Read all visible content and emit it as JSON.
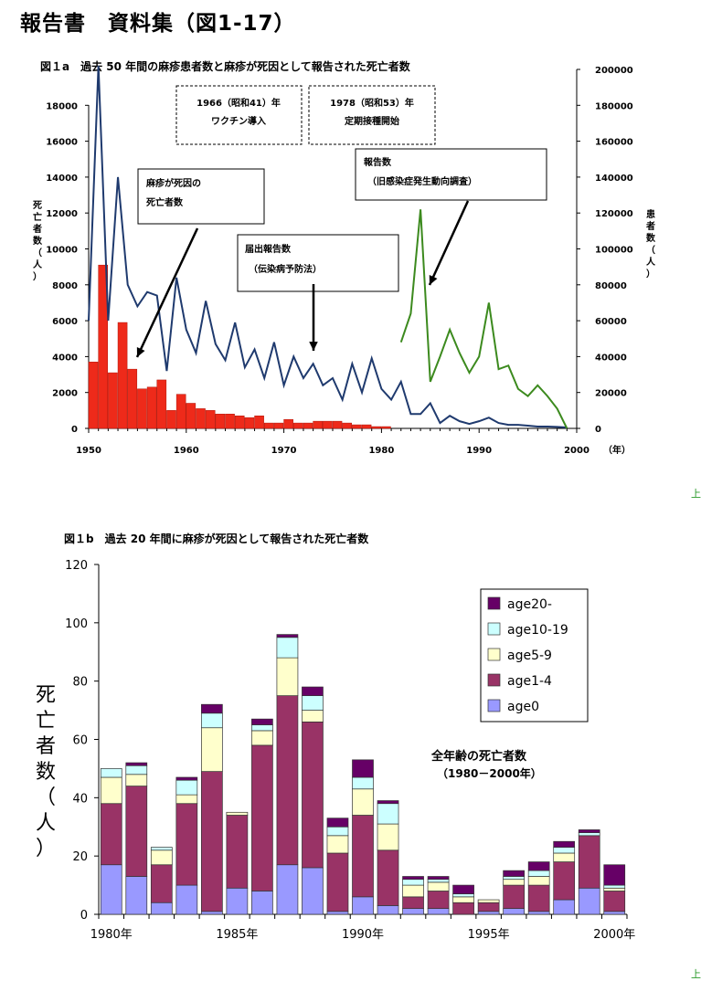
{
  "page": {
    "title": "報告書　資料集（図1-17）",
    "edge_mark_top": "上",
    "edge_mark_bottom": "上"
  },
  "chart_data": [
    {
      "id": "fig1a",
      "type": "line",
      "title": "図１a　過去 50 年間の麻疹患者数と麻疹が死因として報告された死亡者数",
      "left_axis": {
        "label": "死亡者数（人）",
        "ylim": [
          0,
          18000
        ],
        "ticks": [
          "0",
          "2000",
          "4000",
          "6000",
          "8000",
          "10000",
          "12000",
          "14000",
          "16000",
          "18000"
        ]
      },
      "right_axis": {
        "label": "患者数（人）",
        "ylim": [
          0,
          200000
        ],
        "ticks": [
          "0",
          "20000",
          "40000",
          "60000",
          "80000",
          "100000",
          "120000",
          "140000",
          "160000",
          "180000",
          "200000"
        ]
      },
      "x_axis": {
        "xlim": [
          1950,
          2000
        ],
        "ticks": [
          "1950",
          "1960",
          "1970",
          "1980",
          "1990",
          "2000"
        ],
        "unit": "（年）"
      },
      "annotations": {
        "vaccine_intro_year": "1966（昭和41）年",
        "vaccine_intro_text": "ワクチン導入",
        "routine_start_year": "1978（昭和53）年",
        "routine_start_text": "定期接種開始",
        "deaths_label_1": "麻疹が死因の",
        "deaths_label_2": "死亡者数",
        "notified_label_1": "届出報告数",
        "notified_label_2": "（伝染病予防法）",
        "reported_label_1": "報告数",
        "reported_label_2": "（旧感染症発生動向調査）"
      },
      "series": [
        {
          "key": "deaths",
          "axis": "left",
          "render": "bar",
          "color": "#ee2a1a",
          "x": [
            1950,
            1951,
            1952,
            1953,
            1954,
            1955,
            1956,
            1957,
            1958,
            1959,
            1960,
            1961,
            1962,
            1963,
            1964,
            1965,
            1966,
            1967,
            1968,
            1969,
            1970,
            1971,
            1972,
            1973,
            1974,
            1975,
            1976,
            1977,
            1978,
            1979,
            1980
          ],
          "values": [
            3700,
            9100,
            3100,
            5900,
            3300,
            2200,
            2300,
            2700,
            1000,
            1900,
            1400,
            1100,
            1000,
            800,
            800,
            700,
            600,
            700,
            300,
            300,
            500,
            300,
            300,
            400,
            400,
            400,
            300,
            200,
            200,
            100,
            100
          ]
        },
        {
          "key": "notified",
          "axis": "right",
          "render": "line",
          "color": "#1f3a6e",
          "x": [
            1950,
            1951,
            1952,
            1953,
            1954,
            1955,
            1956,
            1957,
            1958,
            1959,
            1960,
            1961,
            1962,
            1963,
            1964,
            1965,
            1966,
            1967,
            1968,
            1969,
            1970,
            1971,
            1972,
            1973,
            1974,
            1975,
            1976,
            1977,
            1978,
            1979,
            1980,
            1981,
            1982,
            1983,
            1984,
            1985,
            1986,
            1987,
            1988,
            1989,
            1990,
            1991,
            1992,
            1993,
            1994,
            1995,
            1996,
            1997,
            1998,
            1999
          ],
          "values": [
            60000,
            202000,
            60000,
            140000,
            80000,
            68000,
            76000,
            74000,
            32000,
            84000,
            55000,
            42000,
            71000,
            47000,
            38000,
            59000,
            34000,
            44000,
            28000,
            48000,
            24000,
            40000,
            28000,
            36000,
            24000,
            28000,
            16000,
            36000,
            20000,
            39000,
            22000,
            16000,
            26000,
            8000,
            8000,
            14000,
            3000,
            7000,
            4000,
            2500,
            4000,
            6000,
            3000,
            2000,
            2000,
            1500,
            1000,
            1000,
            800,
            500
          ]
        },
        {
          "key": "reported",
          "axis": "right",
          "render": "line",
          "color": "#3c8a1e",
          "x": [
            1982,
            1983,
            1984,
            1985,
            1986,
            1987,
            1988,
            1989,
            1990,
            1991,
            1992,
            1993,
            1994,
            1995,
            1996,
            1997,
            1998,
            1999
          ],
          "values": [
            48000,
            64000,
            122000,
            26000,
            40000,
            55000,
            42000,
            31000,
            40000,
            70000,
            33000,
            35000,
            22000,
            18000,
            24000,
            18000,
            11000,
            0
          ]
        }
      ]
    },
    {
      "id": "fig1b",
      "type": "bar",
      "stacked": true,
      "title": "図１b　過去 20 年間に麻疹が死因として報告された死亡者数",
      "ylabel": "死亡者数（人）",
      "ylim": [
        0,
        120
      ],
      "yticks": [
        "0",
        "20",
        "40",
        "60",
        "80",
        "100",
        "120"
      ],
      "x_tick_labels": [
        "1980年",
        "1985年",
        "1990年",
        "1995年",
        "2000年"
      ],
      "x_tick_years": [
        1980,
        1985,
        1990,
        1995,
        2000
      ],
      "annotation_line1": "全年齢の死亡者数",
      "annotation_line2": "（1980－2000年）",
      "categories": [
        1980,
        1981,
        1982,
        1983,
        1984,
        1985,
        1986,
        1987,
        1988,
        1989,
        1990,
        1991,
        1992,
        1993,
        1994,
        1995,
        1996,
        1997,
        1998,
        1999,
        2000
      ],
      "series": [
        {
          "name": "age0",
          "color": "#9999ff",
          "values": [
            17,
            13,
            4,
            10,
            1,
            9,
            8,
            17,
            16,
            1,
            6,
            3,
            2,
            2,
            0,
            1,
            2,
            1,
            5,
            9,
            1
          ]
        },
        {
          "name": "age1-4",
          "color": "#993366",
          "values": [
            21,
            31,
            13,
            28,
            48,
            25,
            50,
            58,
            50,
            20,
            28,
            19,
            4,
            6,
            4,
            3,
            8,
            9,
            13,
            18,
            7
          ]
        },
        {
          "name": "age5-9",
          "color": "#ffffcc",
          "values": [
            9,
            4,
            5,
            3,
            15,
            1,
            5,
            13,
            4,
            6,
            9,
            9,
            4,
            3,
            2,
            1,
            2,
            3,
            3,
            0,
            1
          ]
        },
        {
          "name": "age10-19",
          "color": "#ccffff",
          "values": [
            3,
            3,
            1,
            5,
            5,
            0,
            2,
            7,
            5,
            3,
            4,
            7,
            2,
            1,
            1,
            0,
            1,
            2,
            2,
            1,
            1
          ]
        },
        {
          "name": "age20-",
          "color": "#660066",
          "values": [
            0,
            1,
            0,
            1,
            3,
            0,
            2,
            1,
            3,
            3,
            6,
            1,
            1,
            1,
            3,
            0,
            2,
            3,
            2,
            1,
            7
          ]
        }
      ]
    }
  ]
}
